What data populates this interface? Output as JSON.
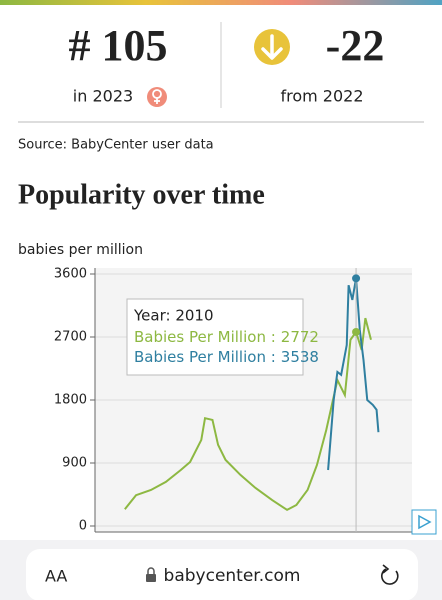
{
  "header": {
    "rank": "# 105",
    "rank_caption": "in 2023",
    "change": "-22",
    "change_caption": "from 2022"
  },
  "source": "Source: BabyCenter user data",
  "section_title": "Popularity over time",
  "chart_data": {
    "type": "line",
    "y_label": "babies per million",
    "xlim": [
      1870,
      2040
    ],
    "ylim": [
      0,
      3600
    ],
    "yticks": [
      0,
      900,
      1800,
      2700,
      3600
    ],
    "grid": true,
    "series": [
      {
        "color": "#8db842",
        "x": [
          1886,
          1892,
          1900,
          1908,
          1916,
          1921,
          1927,
          1929,
          1933,
          1936,
          1940,
          1948,
          1956,
          1965,
          1973,
          1978,
          1984,
          1989,
          1994,
          2000,
          2004,
          2007,
          2010,
          2013,
          2015,
          2018
        ],
        "values": [
          240,
          440,
          515,
          630,
          800,
          915,
          1230,
          1540,
          1515,
          1160,
          945,
          730,
          545,
          370,
          230,
          300,
          515,
          870,
          1370,
          2085,
          1870,
          2660,
          2772,
          2515,
          2970,
          2660
        ]
      },
      {
        "color": "#2f7fa0",
        "x": [
          1995,
          1998,
          2000,
          2002,
          2005,
          2006,
          2008,
          2010,
          2012,
          2014,
          2016,
          2019,
          2021,
          2022
        ],
        "values": [
          800,
          1800,
          2200,
          2160,
          2585,
          3440,
          3230,
          3538,
          2800,
          2370,
          1800,
          1730,
          1660,
          1340
        ]
      }
    ],
    "tooltip": {
      "title": "Year: 2010",
      "x": 2010,
      "items": [
        {
          "label": "Babies Per Million :",
          "value": 2772
        },
        {
          "label": "Babies Per Million :",
          "value": 3538
        }
      ]
    }
  },
  "browser": {
    "text_size": "AA",
    "url": "babycenter.com"
  }
}
